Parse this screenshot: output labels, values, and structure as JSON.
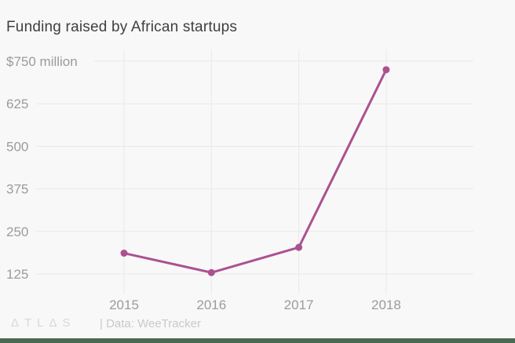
{
  "title": "Funding raised by African startups",
  "footer": {
    "logo": "ΔTLΔS",
    "source": "| Data: WeeTracker"
  },
  "colors": {
    "background": "#f8f8f8",
    "grid": "#e9e9e9",
    "line": "#ab5190",
    "point": "#ab5190",
    "title_text": "#3f3f3f",
    "axis_text": "#9b9b9b",
    "logo_text": "#d8d8d8",
    "source_text": "#c9c9c9",
    "bottom_bar": "#4a6b50"
  },
  "chart_data": {
    "type": "line",
    "title": "Funding raised by African startups",
    "categories": [
      "2015",
      "2016",
      "2017",
      "2018"
    ],
    "values": [
      186,
      129,
      203,
      725
    ],
    "xlabel": "",
    "ylabel": "US$ million",
    "ylim": [
      125,
      750
    ],
    "yticks": [
      750,
      625,
      500,
      375,
      250,
      125
    ],
    "ytick_labels": [
      "$750 million",
      "625",
      "500",
      "375",
      "250",
      "125"
    ],
    "xtick_labels": [
      "2015",
      "2016",
      "2017",
      "2018"
    ],
    "grid": true,
    "legend": false,
    "source": "Data: WeeTracker"
  }
}
